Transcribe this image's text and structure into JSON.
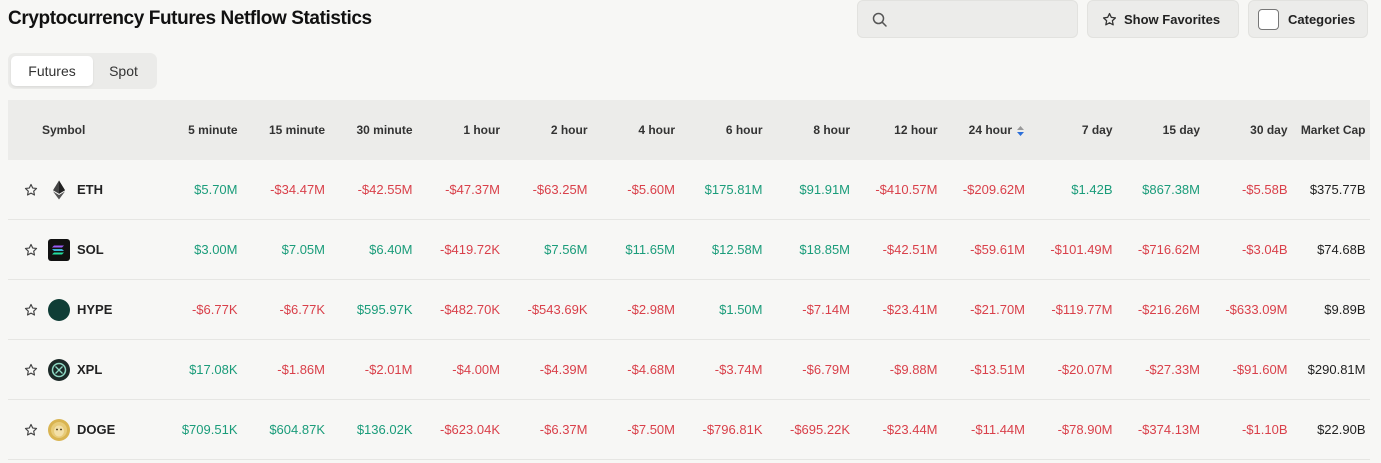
{
  "page": {
    "title": "Cryptocurrency Futures Netflow Statistics"
  },
  "search": {
    "placeholder": "",
    "value": ""
  },
  "toolbar": {
    "favorites_label": "Show Favorites",
    "categories_label": "Categories"
  },
  "tabs": [
    {
      "label": "Futures",
      "active": true
    },
    {
      "label": "Spot",
      "active": false
    }
  ],
  "colors": {
    "positive": "#1a9c7a",
    "negative": "#d9404a",
    "header_bg": "#ececea",
    "sort_active": "#2c6fd9"
  },
  "table": {
    "headers": [
      "Symbol",
      "5 minute",
      "15 minute",
      "30 minute",
      "1 hour",
      "2 hour",
      "4 hour",
      "6 hour",
      "8 hour",
      "12 hour",
      "24 hour",
      "7 day",
      "15 day",
      "30 day",
      "Market Cap"
    ],
    "sorted_column": "24 hour",
    "rows": [
      {
        "symbol": "ETH",
        "icon": "eth-icon",
        "values": [
          "$5.70M",
          "-$34.47M",
          "-$42.55M",
          "-$47.37M",
          "-$63.25M",
          "-$5.60M",
          "$175.81M",
          "$91.91M",
          "-$410.57M",
          "-$209.62M",
          "$1.42B",
          "$867.38M",
          "-$5.58B"
        ],
        "market_cap": "$375.77B"
      },
      {
        "symbol": "SOL",
        "icon": "sol-icon",
        "values": [
          "$3.00M",
          "$7.05M",
          "$6.40M",
          "-$419.72K",
          "$7.56M",
          "$11.65M",
          "$12.58M",
          "$18.85M",
          "-$42.51M",
          "-$59.61M",
          "-$101.49M",
          "-$716.62M",
          "-$3.04B"
        ],
        "market_cap": "$74.68B"
      },
      {
        "symbol": "HYPE",
        "icon": "hype-icon",
        "values": [
          "-$6.77K",
          "-$6.77K",
          "$595.97K",
          "-$482.70K",
          "-$543.69K",
          "-$2.98M",
          "$1.50M",
          "-$7.14M",
          "-$23.41M",
          "-$21.70M",
          "-$119.77M",
          "-$216.26M",
          "-$633.09M"
        ],
        "market_cap": "$9.89B"
      },
      {
        "symbol": "XPL",
        "icon": "xpl-icon",
        "values": [
          "$17.08K",
          "-$1.86M",
          "-$2.01M",
          "-$4.00M",
          "-$4.39M",
          "-$4.68M",
          "-$3.74M",
          "-$6.79M",
          "-$9.88M",
          "-$13.51M",
          "-$20.07M",
          "-$27.33M",
          "-$91.60M"
        ],
        "market_cap": "$290.81M"
      },
      {
        "symbol": "DOGE",
        "icon": "doge-icon",
        "values": [
          "$709.51K",
          "$604.87K",
          "$136.02K",
          "-$623.04K",
          "-$6.37M",
          "-$7.50M",
          "-$796.81K",
          "-$695.22K",
          "-$23.44M",
          "-$11.44M",
          "-$78.90M",
          "-$374.13M",
          "-$1.10B"
        ],
        "market_cap": "$22.90B"
      }
    ]
  }
}
